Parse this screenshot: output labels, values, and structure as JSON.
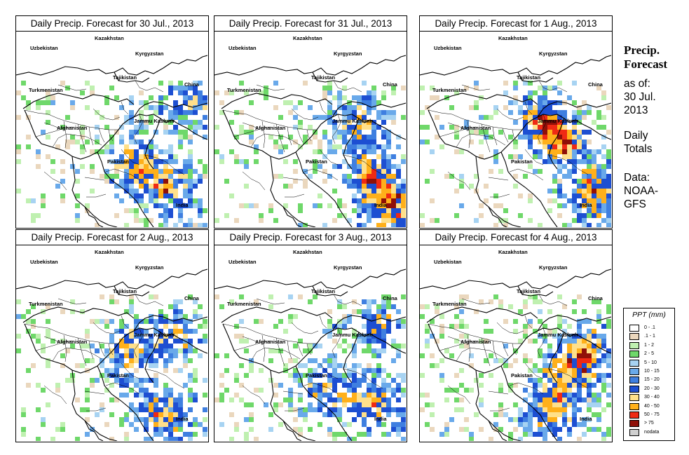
{
  "side": {
    "heading_line1": "Precip.",
    "heading_line2": "Forecast",
    "asof_line1": "as of:",
    "asof_line2": "30 Jul.",
    "asof_line3": "2013",
    "totals_line1": "Daily",
    "totals_line2": "Totals",
    "data_line1": "Data:",
    "data_line2": "NOAA-",
    "data_line3": "GFS"
  },
  "map_labels": {
    "kazakhstan": "Kazakhstan",
    "uzbekistan": "Uzbekistan",
    "kyrgyzstan": "Kyrgyzstan",
    "tajikistan": "Tajikistan",
    "turkmenistan": "Turkmenistan",
    "china": "China",
    "afghanistan": "Afghanistan",
    "jammu_kashmir": "Jammu Kashmir",
    "pakistan": "Pakistan",
    "india": "India"
  },
  "panels": [
    {
      "title": "Daily Precip. Forecast for  30 Jul., 2013",
      "seed": 11,
      "focus": [
        [
          0.78,
          0.78
        ],
        [
          0.9,
          0.35
        ],
        [
          0.6,
          0.65
        ]
      ]
    },
    {
      "title": "Daily Precip. Forecast for  31 Jul., 2013",
      "seed": 23,
      "focus": [
        [
          0.8,
          0.72
        ],
        [
          0.75,
          0.45
        ],
        [
          0.92,
          0.9
        ]
      ]
    },
    {
      "title": "Daily Precip. Forecast for  1 Aug., 2013",
      "seed": 37,
      "focus": [
        [
          0.75,
          0.55
        ],
        [
          0.62,
          0.45
        ],
        [
          0.9,
          0.8
        ]
      ]
    },
    {
      "title": "Daily Precip. Forecast for  2 Aug., 2013",
      "seed": 41,
      "focus": [
        [
          0.75,
          0.85
        ],
        [
          0.82,
          0.45
        ],
        [
          0.55,
          0.55
        ]
      ]
    },
    {
      "title": "Daily Precip. Forecast for  3 Aug., 2013",
      "seed": 53,
      "focus": [
        [
          0.8,
          0.78
        ],
        [
          0.55,
          0.72
        ],
        [
          0.85,
          0.4
        ]
      ]
    },
    {
      "title": "Daily Precip. Forecast for  4 Aug., 2013",
      "seed": 67,
      "focus": [
        [
          0.75,
          0.65
        ],
        [
          0.88,
          0.5
        ],
        [
          0.65,
          0.85
        ]
      ]
    }
  ],
  "legend": {
    "title": "PPT (mm)",
    "entries": [
      {
        "label": "0 - .1",
        "color": "#ffffff"
      },
      {
        "label": ".1 - 1",
        "color": "#ead7bd"
      },
      {
        "label": "1 - 2",
        "color": "#bff0b0"
      },
      {
        "label": "2 - 5",
        "color": "#6fd86a"
      },
      {
        "label": "5 - 10",
        "color": "#a7d3f2"
      },
      {
        "label": "10 - 15",
        "color": "#69a9ea"
      },
      {
        "label": "15 - 20",
        "color": "#3f7fe0"
      },
      {
        "label": "20 - 30",
        "color": "#1d4fd2"
      },
      {
        "label": "30 - 40",
        "color": "#ffe08a"
      },
      {
        "label": "40 - 50",
        "color": "#ffb01a"
      },
      {
        "label": "50 - 75",
        "color": "#ef2a14"
      },
      {
        "label": "> 75",
        "color": "#8f1008"
      },
      {
        "label": "nodata",
        "color": "#cfcfcf"
      }
    ]
  }
}
